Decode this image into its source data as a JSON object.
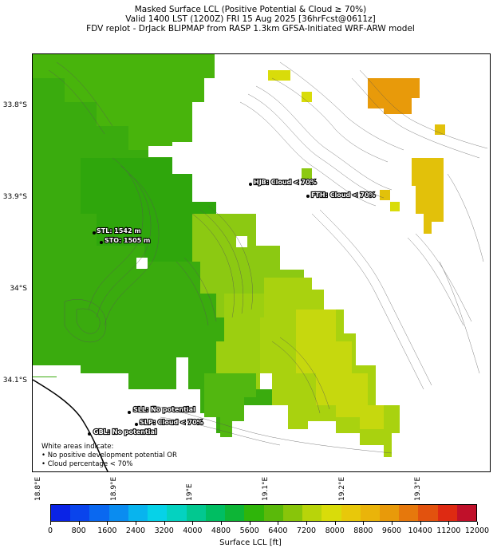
{
  "title": {
    "line1": "Masked Surface LCL (Positive Potential & Cloud ≥ 70%)",
    "line2": "Valid 1400 LST (1200Z) FRI 15 Aug 2025 [36hrFcst@0611z]",
    "line3": "FDV replot - DrJack BLIPMAP from RASP 1.3km GFSA-Initiated WRF-ARW model"
  },
  "y_axis_labels": [
    "33.8°S",
    "33.9°S",
    "34°S",
    "34.1°S"
  ],
  "x_axis_labels": [
    "18.8°E",
    "18.9°E",
    "19°E",
    "19.1°E",
    "19.2°E",
    "19.3°E"
  ],
  "stations": [
    {
      "name": "STL",
      "label": "STL: 1542 m"
    },
    {
      "name": "STO",
      "label": "STO: 1505 m"
    },
    {
      "name": "HJB",
      "label": "HJB: Cloud < 70%"
    },
    {
      "name": "FTH",
      "label": "FTH: Cloud < 70%"
    },
    {
      "name": "SLL",
      "label": "SLL: No potential"
    },
    {
      "name": "SLP",
      "label": "SLP: Cloud < 70%"
    },
    {
      "name": "GBL",
      "label": "GBL: No potential"
    }
  ],
  "note": {
    "line1": "White areas indicate:",
    "line2": "• No positive development potential OR",
    "line3": "• Cloud percentage < 70%"
  },
  "colorbar": {
    "label": "Surface LCL [ft]",
    "ticks": [
      "0",
      "800",
      "1600",
      "2400",
      "3200",
      "4000",
      "4800",
      "5600",
      "6400",
      "7200",
      "8000",
      "8800",
      "9600",
      "10400",
      "11200",
      "12000"
    ],
    "colors": [
      "#0a23e6",
      "#0a44ec",
      "#0a68f0",
      "#0a8cf0",
      "#08b4ee",
      "#06d2e8",
      "#04d2c0",
      "#02c890",
      "#00be62",
      "#0db536",
      "#2fb50a",
      "#5ab90a",
      "#88c50a",
      "#b8d40a",
      "#d9dc0a",
      "#e8c80a",
      "#eab40a",
      "#e89a0a",
      "#e6780c",
      "#e2520e",
      "#de2a12",
      "#c0102a"
    ]
  },
  "shading_colors": {
    "green_dark": "#3aab0e",
    "green_mid": "#52b710",
    "yellow_green": "#8cc912",
    "yellow": "#c6d80e",
    "gold": "#e2c10a",
    "orange": "#e89a0a",
    "contour": "#555555"
  }
}
